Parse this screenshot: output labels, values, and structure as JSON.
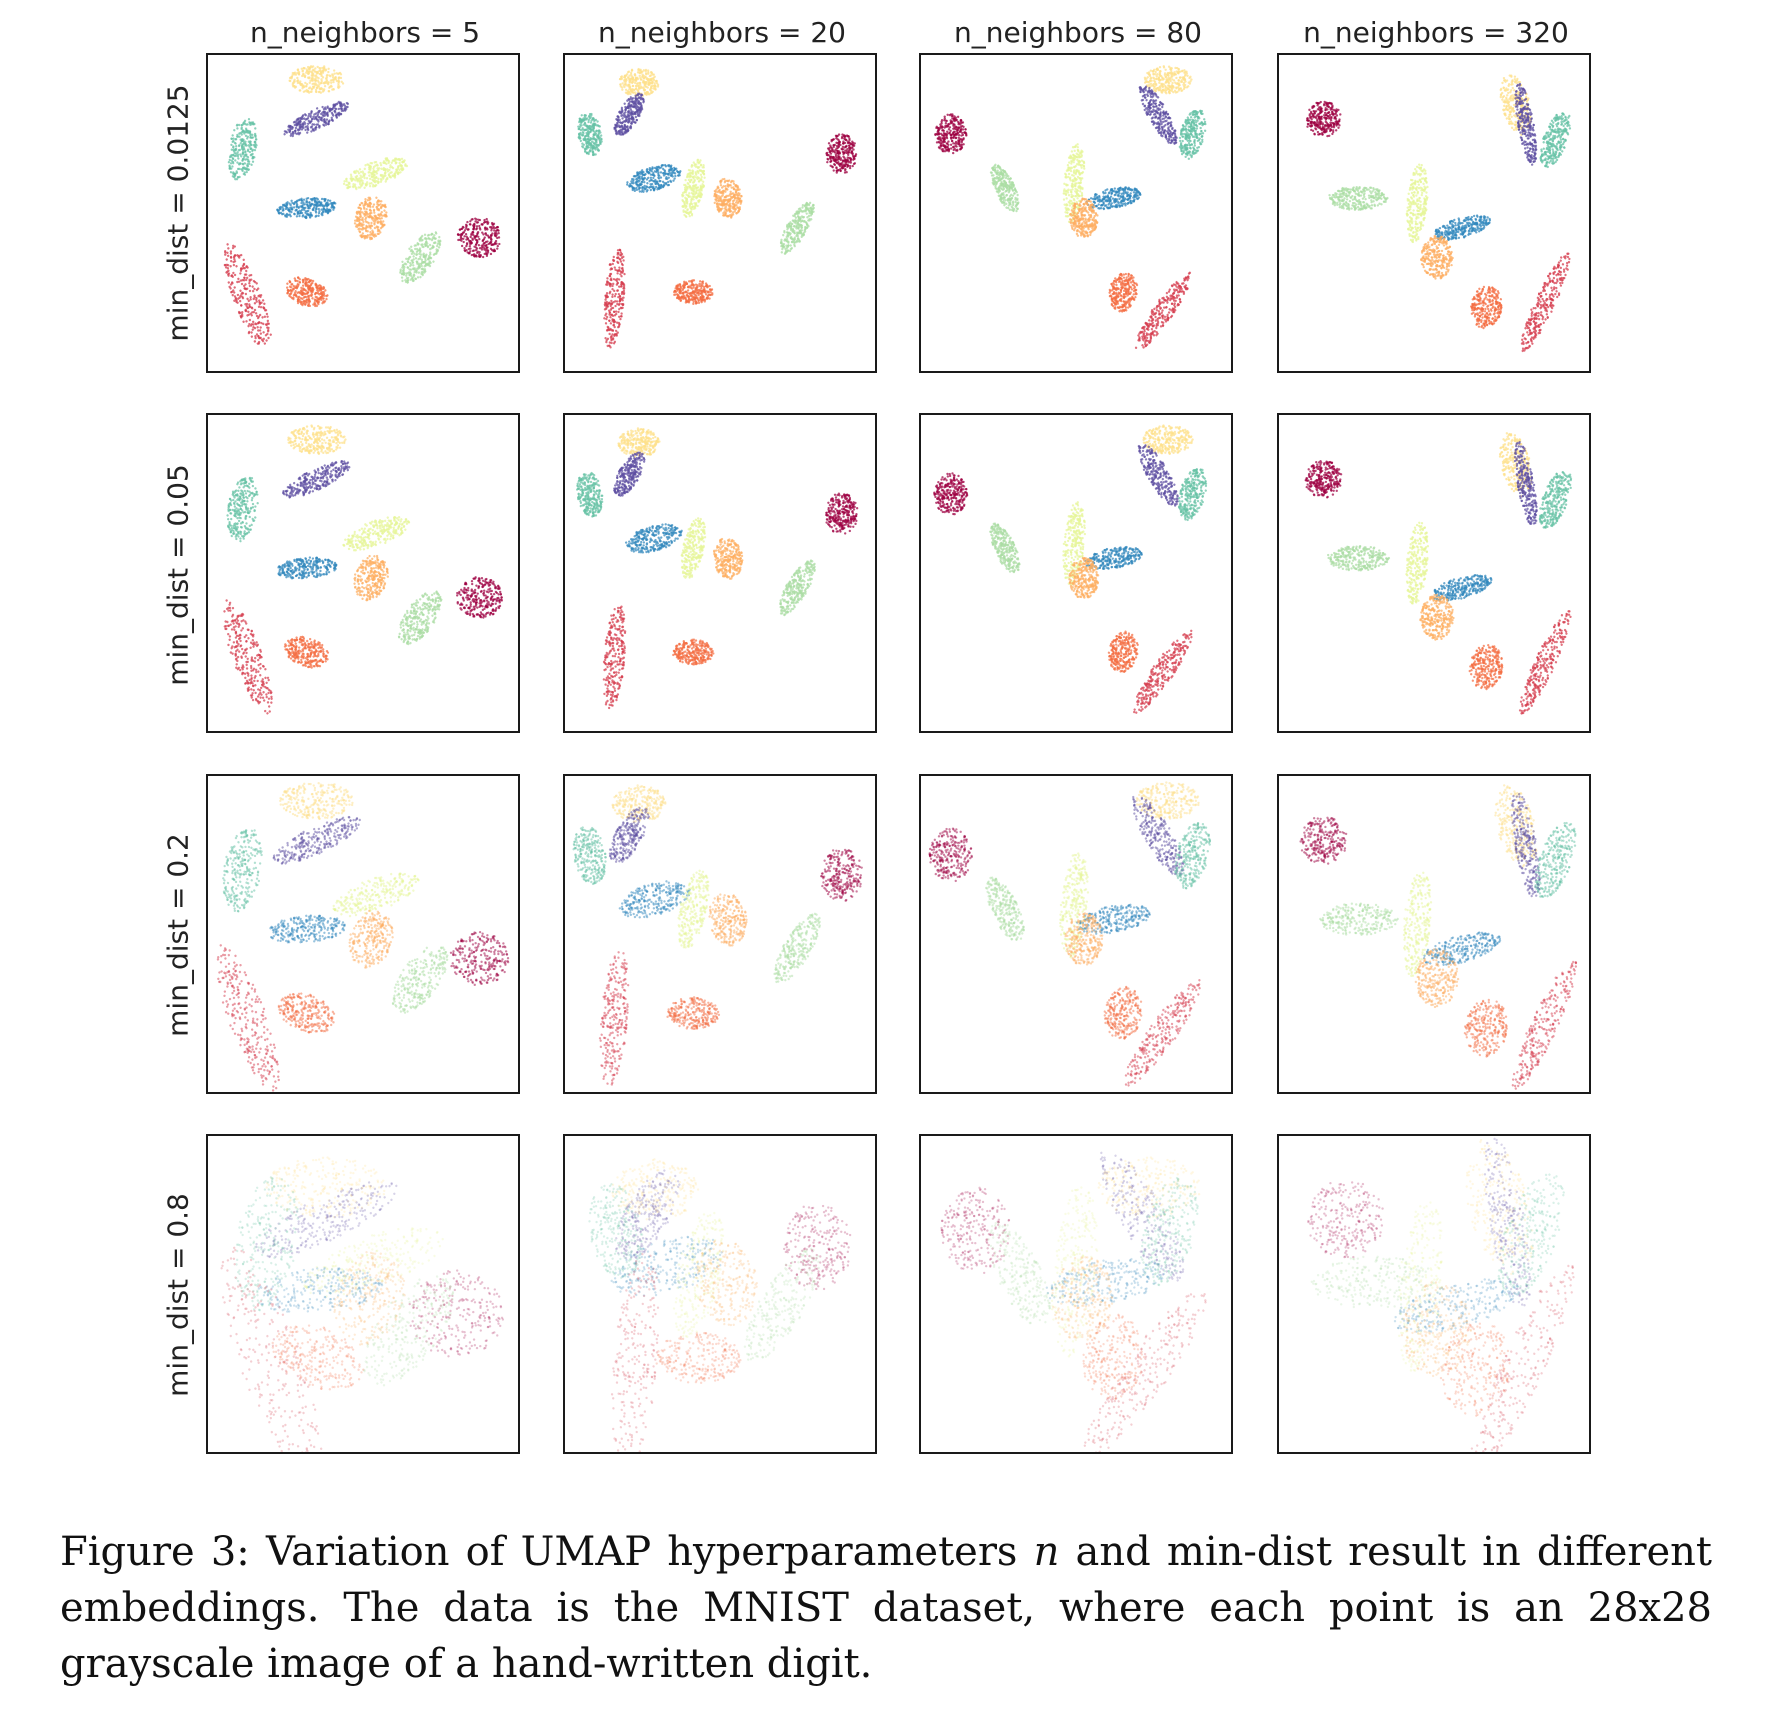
{
  "figure": {
    "column_titles": [
      "n_neighbors = 5",
      "n_neighbors = 20",
      "n_neighbors = 80",
      "n_neighbors = 320"
    ],
    "row_labels": [
      "min_dist = 0.0125",
      "min_dist = 0.05",
      "min_dist = 0.2",
      "min_dist = 0.8"
    ],
    "palette": [
      "#9e0142",
      "#d53e4f",
      "#f46d43",
      "#fdae61",
      "#fee08b",
      "#e6f598",
      "#abdda4",
      "#66c2a5",
      "#3288bd",
      "#5e4fa2"
    ]
  },
  "caption": {
    "prefix": "Figure 3: Variation of UMAP hyperparameters ",
    "math": "n",
    "suffix": " and min-dist result in different embeddings. The data is the MNIST dataset, where each point is an 28x28 grayscale image of a hand-written digit."
  }
}
